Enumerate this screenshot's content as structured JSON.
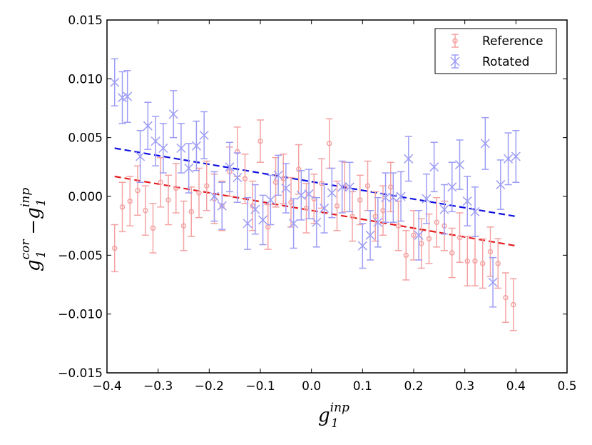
{
  "chart_data": {
    "type": "scatter",
    "title": "",
    "xlabel": "g1 inp",
    "ylabel": "g1 cor − g1 inp",
    "xlabel_parts": {
      "base": "g",
      "sub": "1",
      "sup": "inp"
    },
    "ylabel_parts": {
      "base1": "g",
      "sub1": "1",
      "sup1": "cor",
      "minus": "−",
      "base2": "g",
      "sub2": "1",
      "sup2": "inp"
    },
    "xlim": [
      -0.4,
      0.5
    ],
    "ylim": [
      -0.015,
      0.015
    ],
    "xticks": [
      -0.4,
      -0.3,
      -0.2,
      -0.1,
      0.0,
      0.1,
      0.2,
      0.3,
      0.4,
      0.5
    ],
    "xtick_labels": [
      "−0.4",
      "−0.3",
      "−0.2",
      "−0.1",
      "0.0",
      "0.1",
      "0.2",
      "0.3",
      "0.4",
      "0.5"
    ],
    "yticks": [
      -0.015,
      -0.01,
      -0.005,
      0.0,
      0.005,
      0.01,
      0.015
    ],
    "ytick_labels": [
      "−0.015",
      "−0.010",
      "−0.005",
      "0.000",
      "0.005",
      "0.010",
      "0.015"
    ],
    "grid": false,
    "legend_position": "top-right",
    "series": [
      {
        "name": "Reference",
        "color": "#f4a3a3",
        "marker": "circle",
        "fit_color": "#e41a1c",
        "fit": {
          "x0": -0.385,
          "y0": 0.0017,
          "x1": 0.4,
          "y1": -0.0042
        },
        "x": [
          -0.385,
          -0.37,
          -0.355,
          -0.34,
          -0.325,
          -0.31,
          -0.295,
          -0.28,
          -0.265,
          -0.25,
          -0.235,
          -0.22,
          -0.205,
          -0.19,
          -0.175,
          -0.16,
          -0.145,
          -0.13,
          -0.115,
          -0.1,
          -0.085,
          -0.07,
          -0.055,
          -0.04,
          -0.025,
          -0.01,
          0.005,
          0.02,
          0.035,
          0.05,
          0.065,
          0.08,
          0.095,
          0.11,
          0.125,
          0.14,
          0.155,
          0.17,
          0.185,
          0.2,
          0.215,
          0.23,
          0.245,
          0.26,
          0.275,
          0.29,
          0.305,
          0.32,
          0.335,
          0.35,
          0.365,
          0.38,
          0.395
        ],
        "y": [
          -0.0044,
          -0.0009,
          -0.0004,
          0.0005,
          -0.0012,
          -0.0027,
          0.0012,
          -0.0003,
          0.0007,
          -0.0025,
          -0.0013,
          0.0003,
          0.0009,
          -0.0002,
          -0.0008,
          0.0021,
          0.0038,
          0.0015,
          -0.0008,
          0.0047,
          -0.0026,
          0.0012,
          0.0015,
          -0.0005,
          0.0023,
          -0.001,
          -0.0002,
          0.0011,
          0.0045,
          -0.0008,
          0.0008,
          -0.0017,
          -0.0003,
          0.0009,
          -0.0017,
          -0.0012,
          0.0008,
          -0.0025,
          -0.005,
          -0.0033,
          -0.004,
          -0.0036,
          -0.0022,
          -0.0025,
          -0.0048,
          -0.0035,
          -0.0055,
          -0.0055,
          -0.0057,
          -0.0047,
          -0.0057,
          -0.0086,
          -0.0092
        ],
        "err": [
          0.002,
          0.0021,
          0.0021,
          0.0021,
          0.0021,
          0.0021,
          0.0021,
          0.0021,
          0.0021,
          0.0021,
          0.0021,
          0.0021,
          0.0021,
          0.0021,
          0.0021,
          0.0021,
          0.0021,
          0.0021,
          0.0021,
          0.0018,
          0.0019,
          0.0021,
          0.0021,
          0.0021,
          0.0021,
          0.0021,
          0.0021,
          0.0021,
          0.0021,
          0.0021,
          0.0021,
          0.0021,
          0.0021,
          0.0021,
          0.0021,
          0.0021,
          0.0021,
          0.0021,
          0.0021,
          0.0021,
          0.0021,
          0.0021,
          0.0021,
          0.0021,
          0.0021,
          0.0021,
          0.0021,
          0.0021,
          0.0021,
          0.0021,
          0.0021,
          0.0021,
          0.0022
        ]
      },
      {
        "name": "Rotated",
        "color": "#9d9df5",
        "marker": "x",
        "fit_color": "#1010e0",
        "fit": {
          "x0": -0.385,
          "y0": 0.0041,
          "x1": 0.4,
          "y1": -0.0017
        },
        "x": [
          -0.385,
          -0.37,
          -0.36,
          -0.335,
          -0.32,
          -0.305,
          -0.29,
          -0.27,
          -0.255,
          -0.24,
          -0.225,
          -0.21,
          -0.19,
          -0.175,
          -0.16,
          -0.145,
          -0.125,
          -0.11,
          -0.095,
          -0.08,
          -0.065,
          -0.05,
          -0.035,
          -0.02,
          -0.005,
          0.01,
          0.025,
          0.04,
          0.06,
          0.075,
          0.1,
          0.115,
          0.13,
          0.145,
          0.16,
          0.175,
          0.19,
          0.21,
          0.225,
          0.24,
          0.26,
          0.275,
          0.29,
          0.305,
          0.32,
          0.34,
          0.355,
          0.37,
          0.385,
          0.4
        ],
        "y": [
          0.0097,
          0.0084,
          0.0085,
          0.0034,
          0.006,
          0.0047,
          0.0041,
          0.007,
          0.0041,
          0.0024,
          0.0043,
          0.0052,
          0.0,
          -0.0008,
          0.0025,
          0.0016,
          -0.0023,
          -0.0011,
          -0.002,
          -0.0003,
          0.0018,
          0.0007,
          -0.0023,
          0.0001,
          0.0002,
          -0.0022,
          -0.001,
          0.0003,
          0.0008,
          0.0008,
          -0.0042,
          -0.0033,
          -0.0022,
          -0.0001,
          -0.0001,
          0.0,
          0.0032,
          -0.0033,
          -0.0002,
          0.0025,
          -0.0011,
          0.0008,
          0.0027,
          -0.0004,
          -0.0013,
          0.0045,
          -0.0073,
          0.001,
          0.0032,
          0.0034
        ],
        "err": [
          0.002,
          0.0022,
          0.0022,
          0.0022,
          0.002,
          0.0021,
          0.0021,
          0.002,
          0.0021,
          0.0021,
          0.0021,
          0.002,
          0.0021,
          0.002,
          0.0021,
          0.0021,
          0.0022,
          0.0021,
          0.0021,
          0.0021,
          0.0017,
          0.0021,
          0.0021,
          0.0021,
          0.0021,
          0.0021,
          0.0021,
          0.0021,
          0.0022,
          0.0021,
          0.0019,
          0.0021,
          0.0021,
          0.0021,
          0.0021,
          0.0021,
          0.0019,
          0.0021,
          0.0021,
          0.0021,
          0.0021,
          0.0021,
          0.0021,
          0.0021,
          0.0021,
          0.0022,
          0.0021,
          0.0021,
          0.0022,
          0.0022
        ]
      }
    ]
  }
}
